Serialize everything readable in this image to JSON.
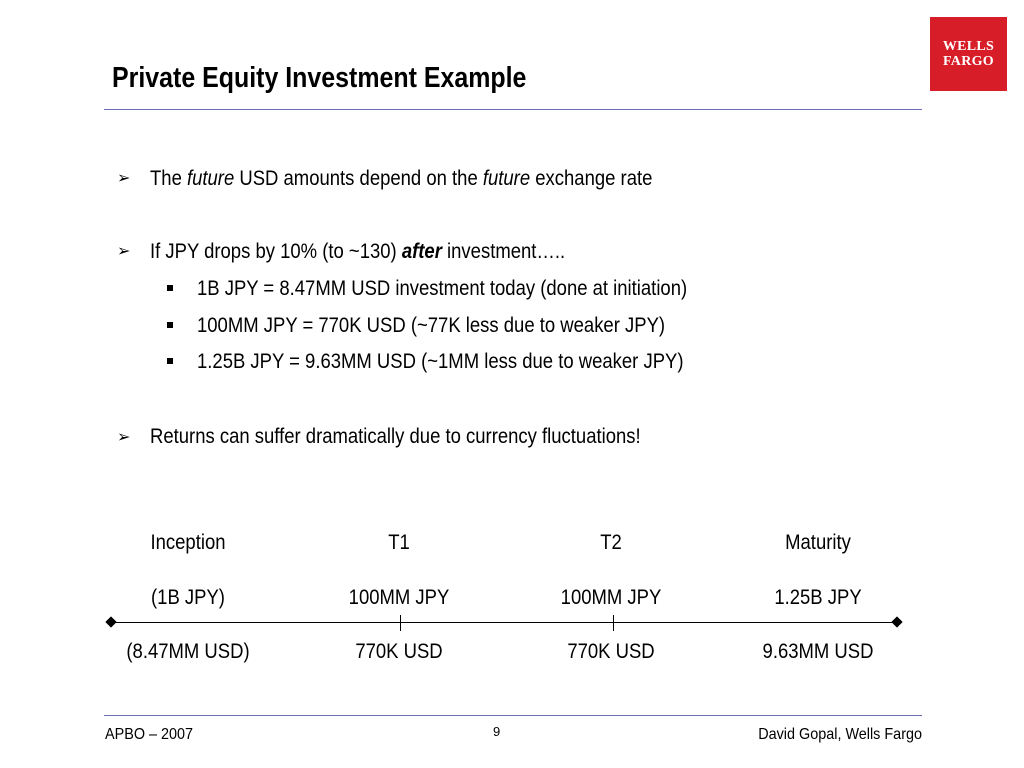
{
  "slide": {
    "title": "Private Equity Investment Example",
    "logo_line1": "WELLS",
    "logo_line2": "FARGO",
    "brand_color": "#d71e28",
    "rule_color": "#6b6bb8"
  },
  "bullets": {
    "b1": {
      "t1": "The ",
      "t2": "future",
      "t3": " USD amounts depend on the ",
      "t4": "future",
      "t5": " exchange rate"
    },
    "b2": {
      "t1": "If JPY drops by 10% (to ~130) ",
      "t2": "after",
      "t3": " investment….."
    },
    "sub": [
      "1B JPY = 8.47MM USD investment today (done at initiation)",
      "100MM JPY = 770K USD (~77K less due to weaker JPY)",
      "1.25B JPY = 9.63MM USD (~1MM less due to weaker JPY)"
    ],
    "b3": "Returns can suffer dramatically due to currency fluctuations!",
    "arrow_icon": "arrow-bullet-icon",
    "square_icon": "square-bullet-icon"
  },
  "timeline": {
    "points": [
      {
        "label": "Inception",
        "jpy": "(1B JPY)",
        "usd": "(8.47MM USD)"
      },
      {
        "label": "T1",
        "jpy": "100MM JPY",
        "usd": "770K USD"
      },
      {
        "label": "T2",
        "jpy": "100MM JPY",
        "usd": "770K USD"
      },
      {
        "label": "Maturity",
        "jpy": "1.25B JPY",
        "usd": "9.63MM USD"
      }
    ]
  },
  "footer": {
    "left": "APBO – 2007",
    "page": "9",
    "right": "David Gopal, Wells Fargo"
  }
}
